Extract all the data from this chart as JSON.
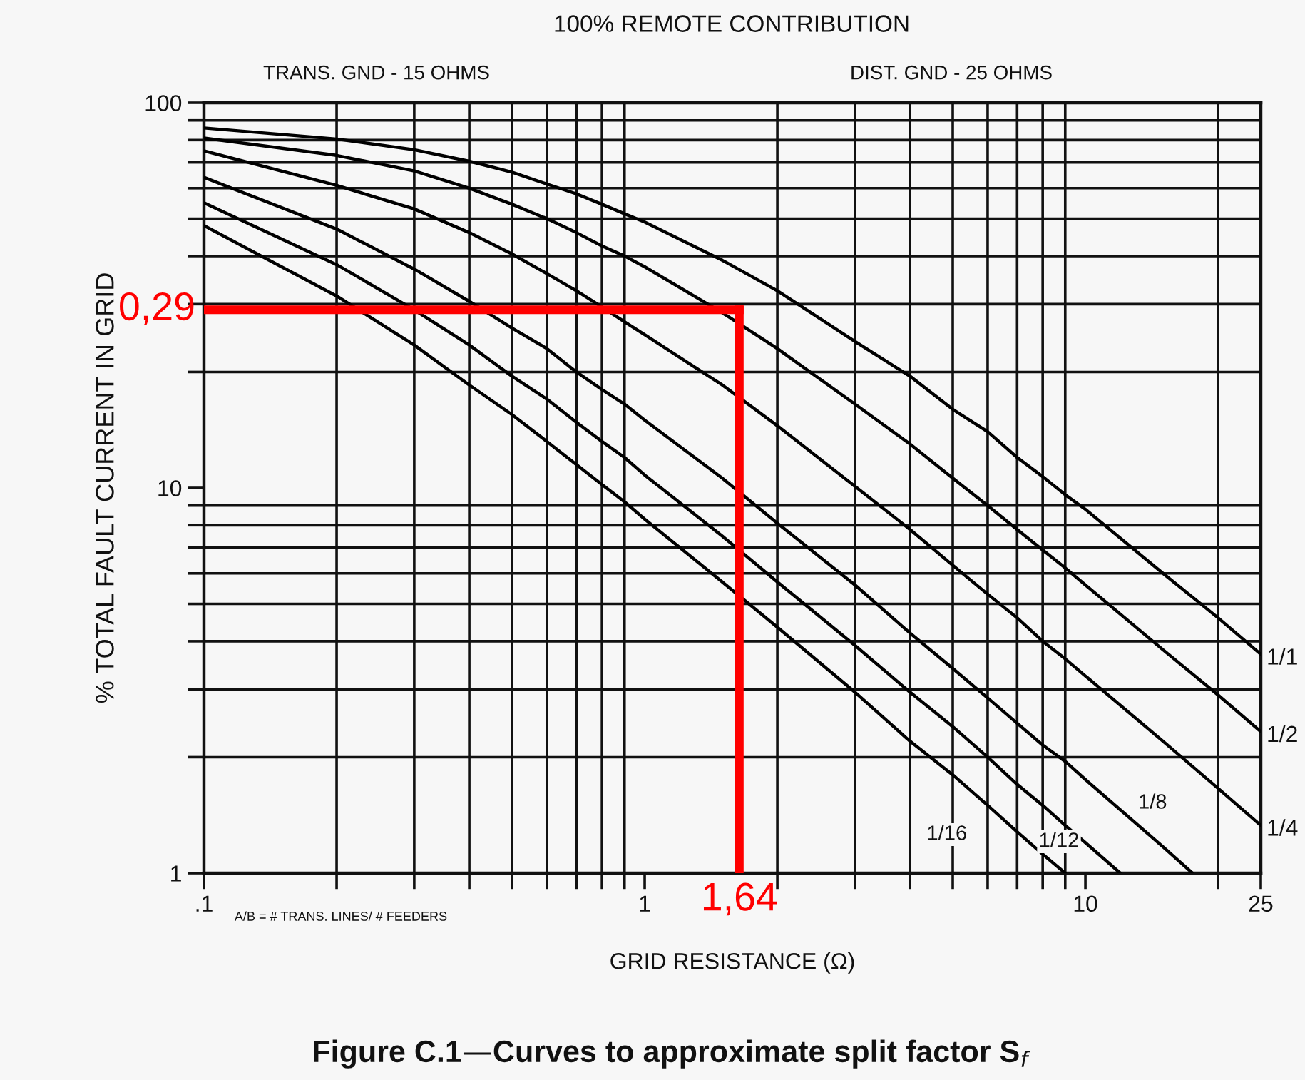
{
  "chart_data": {
    "type": "line",
    "title": "100% REMOTE CONTRIBUTION",
    "xlabel": "GRID RESISTANCE (Ω)",
    "ylabel": "% TOTAL FAULT CURRENT IN GRID",
    "annotations": [
      "TRANS. GND - 15 OHMS",
      "DIST. GND - 25 OHMS",
      "A/B = # TRANS. LINES/ # FEEDERS",
      "Figure C.1—Curves to approximate split factor S$_{f}$",
      {
        "text": "0,29",
        "x": 0.1,
        "y": 29
      }
    ],
    "log": "xy",
    "grid": true,
    "xlim": [
      0.1,
      25
    ],
    "ylim": [
      1,
      100
    ],
    "xticks": [
      {
        "value": 0.1,
        "label": ".1"
      },
      {
        "value": 0.2,
        "label": null
      },
      {
        "value": 0.3,
        "label": null
      },
      {
        "value": 0.4,
        "label": null
      },
      {
        "value": 0.5,
        "label": null
      },
      {
        "value": 0.6,
        "label": null
      },
      {
        "value": 0.7,
        "label": null
      },
      {
        "value": 0.8,
        "label": null
      },
      {
        "value": 0.9,
        "label": null
      },
      1,
      {
        "value": 2,
        "label": null
      },
      {
        "value": 3,
        "label": null
      },
      {
        "value": 4,
        "label": null
      },
      {
        "value": 5,
        "label": null
      },
      {
        "value": 6,
        "label": null
      },
      {
        "value": 7,
        "label": null
      },
      {
        "value": 8,
        "label": null
      },
      {
        "value": 9,
        "label": null
      },
      10,
      {
        "value": 20,
        "label": null
      },
      25
    ],
    "yticks": [
      1,
      {
        "value": 2,
        "label": null
      },
      {
        "value": 3,
        "label": null
      },
      {
        "value": 4,
        "label": null
      },
      {
        "value": 5,
        "label": null
      },
      {
        "value": 6,
        "label": null
      },
      {
        "value": 7,
        "label": null
      },
      {
        "value": 8,
        "label": null
      },
      {
        "value": 9,
        "label": null
      },
      10,
      {
        "value": 20,
        "label": null
      },
      {
        "value": 30,
        "label": null
      },
      {
        "value": 40,
        "label": null
      },
      {
        "value": 50,
        "label": null
      },
      {
        "value": 60,
        "label": null
      },
      {
        "value": 70,
        "label": null
      },
      {
        "value": 80,
        "label": null
      },
      {
        "value": 90,
        "label": null
      },
      100
    ],
    "series": [
      {
        "name": "1/1",
        "color": "#000000",
        "x": [
          0.1,
          0.2,
          0.3,
          0.4,
          0.5,
          0.6,
          0.7,
          0.8,
          0.9,
          1,
          1.5,
          2,
          3,
          4,
          5,
          6,
          7,
          8,
          9,
          10,
          15,
          20,
          25
        ],
        "values": [
          86,
          80.5,
          75.5,
          70.5,
          66,
          61.5,
          58,
          54.5,
          51.5,
          49,
          39,
          32.5,
          24,
          19.5,
          16,
          14,
          12,
          10.7,
          9.6,
          8.8,
          6.0,
          4.6,
          3.7
        ]
      },
      {
        "name": "1/2",
        "color": "#000000",
        "x": [
          0.1,
          0.2,
          0.3,
          0.4,
          0.5,
          0.6,
          0.7,
          0.8,
          0.9,
          1,
          1.5,
          2,
          3,
          4,
          5,
          6,
          7,
          8,
          9,
          10,
          15,
          20,
          25
        ],
        "values": [
          81,
          73,
          66.5,
          60,
          54.5,
          50,
          46,
          42.5,
          40,
          37.5,
          28.5,
          23,
          16.5,
          13,
          10.6,
          9.0,
          7.8,
          6.9,
          6.2,
          5.6,
          3.8,
          2.9,
          2.33
        ]
      },
      {
        "name": "1/4",
        "color": "#000000",
        "x": [
          0.1,
          0.2,
          0.3,
          0.4,
          0.5,
          0.6,
          0.7,
          0.8,
          0.9,
          1,
          1.5,
          2,
          3,
          4,
          5,
          6,
          7,
          8,
          9,
          10,
          15,
          20,
          25
        ],
        "values": [
          75,
          61,
          53,
          46,
          40.5,
          36,
          32.5,
          29.5,
          27,
          25,
          18.5,
          14.5,
          10.1,
          7.8,
          6.3,
          5.3,
          4.6,
          4.0,
          3.6,
          3.25,
          2.2,
          1.66,
          1.33
        ]
      },
      {
        "name": "1/8",
        "color": "#000000",
        "x": [
          0.1,
          0.2,
          0.3,
          0.4,
          0.5,
          0.6,
          0.7,
          0.8,
          0.9,
          1,
          1.5,
          2,
          3,
          4,
          5,
          6,
          7,
          8,
          9,
          10,
          15,
          17.5
        ],
        "values": [
          64,
          47,
          37,
          30.5,
          26,
          23,
          20,
          18,
          16.5,
          15,
          10.6,
          8.1,
          5.6,
          4.2,
          3.4,
          2.85,
          2.45,
          2.15,
          1.95,
          1.75,
          1.17,
          1
        ]
      },
      {
        "name": "1/12",
        "color": "#000000",
        "x": [
          0.1,
          0.2,
          0.3,
          0.4,
          0.5,
          0.6,
          0.7,
          0.8,
          0.9,
          1,
          1.5,
          2,
          3,
          4,
          5,
          6,
          7,
          8,
          9,
          10,
          12
        ],
        "values": [
          55,
          38,
          29,
          23.5,
          19.5,
          17,
          14.8,
          13.2,
          12,
          10.8,
          7.5,
          5.7,
          3.9,
          2.95,
          2.4,
          2.0,
          1.7,
          1.5,
          1.33,
          1.2,
          1
        ]
      },
      {
        "name": "1/16",
        "color": "#000000",
        "x": [
          0.1,
          0.2,
          0.3,
          0.4,
          0.5,
          0.6,
          0.7,
          0.8,
          0.9,
          1,
          1.5,
          2,
          3,
          4,
          5,
          6,
          7,
          8,
          9
        ],
        "values": [
          48,
          31.5,
          23.5,
          18.5,
          15.5,
          13.2,
          11.5,
          10.2,
          9.2,
          8.3,
          5.7,
          4.35,
          2.95,
          2.2,
          1.8,
          1.5,
          1.28,
          1.12,
          1
        ]
      }
    ],
    "ref_lines": [
      {
        "axis": "y",
        "value": 29,
        "color": "#ff0000"
      },
      {
        "axis": "x",
        "value": 1.64,
        "label": "1,64",
        "color": "#ff0000"
      }
    ]
  }
}
